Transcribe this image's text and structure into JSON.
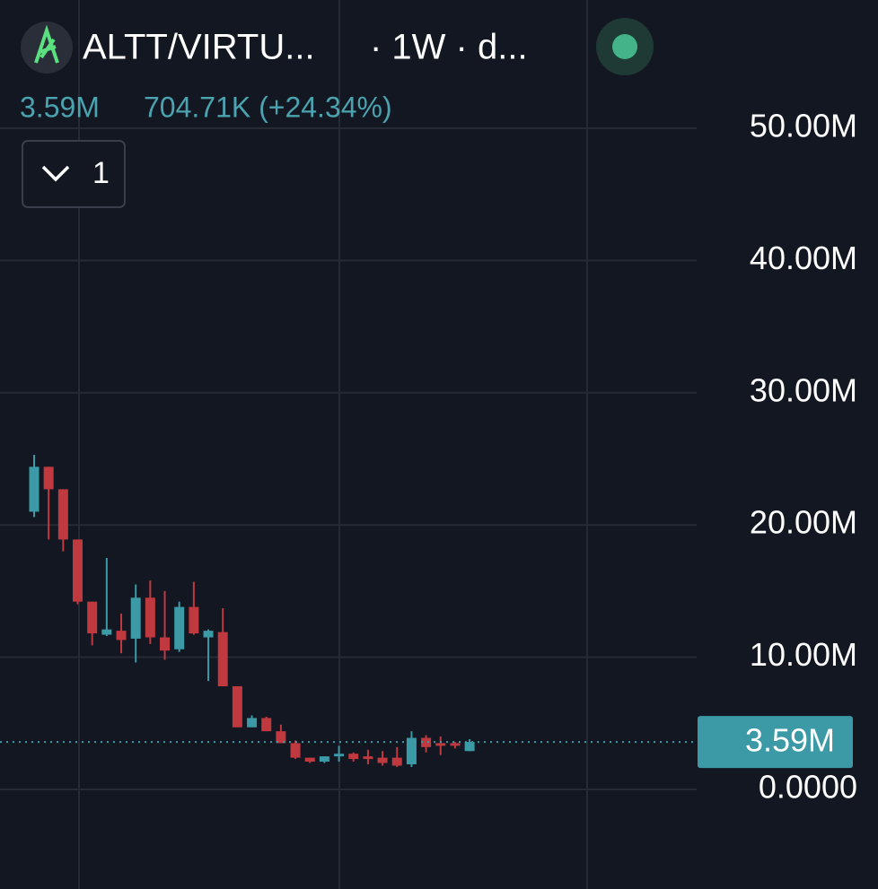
{
  "chart_data": {
    "type": "candlestick",
    "title": "ALTT/VIRTU...",
    "interval": "· 1W · d...",
    "last_label": "3.59M",
    "change_label": "704.71K (+24.34%)",
    "indicators_label": "1",
    "last_price": 3590000,
    "last_price_label": "3.59M",
    "up_color": "#3b9aa6",
    "down_color": "#c0393f",
    "categories": [
      null,
      null,
      null,
      null,
      null,
      null,
      null,
      null,
      null,
      null,
      null,
      null,
      null,
      null,
      null,
      null,
      null,
      null,
      null,
      null,
      null,
      null,
      null,
      null,
      null,
      null,
      null,
      null,
      null,
      null,
      null
    ],
    "open": [
      21000000,
      24400000,
      22700000,
      18900000,
      14200000,
      11700000,
      12000000,
      11400000,
      14500000,
      11500000,
      10600000,
      13800000,
      11500000,
      11900000,
      7800000,
      4700000,
      5400000,
      4400000,
      3500000,
      2400000,
      2100000,
      2500000,
      2700000,
      2500000,
      2400000,
      2400000,
      1900000,
      3900000,
      3500000,
      3500000,
      2900000
    ],
    "high": [
      25300000,
      24400000,
      22700000,
      18900000,
      14200000,
      17500000,
      13300000,
      15500000,
      15800000,
      15000000,
      14200000,
      15700000,
      12100000,
      13700000,
      7800000,
      5600000,
      5500000,
      4900000,
      3700000,
      2400000,
      2500000,
      3300000,
      2800000,
      3000000,
      2900000,
      3200000,
      4400000,
      4100000,
      4000000,
      3600000,
      3800000
    ],
    "low": [
      20600000,
      18900000,
      18000000,
      14000000,
      10900000,
      11600000,
      10300000,
      9600000,
      11000000,
      9800000,
      10400000,
      11700000,
      8200000,
      7800000,
      4700000,
      4700000,
      4400000,
      3500000,
      2300000,
      2000000,
      2000000,
      2100000,
      2100000,
      1900000,
      1800000,
      1700000,
      1700000,
      2800000,
      2600000,
      3100000,
      2900000
    ],
    "close": [
      24400000,
      22700000,
      18900000,
      14200000,
      11800000,
      12100000,
      11300000,
      14500000,
      11500000,
      10500000,
      13800000,
      11800000,
      12000000,
      7800000,
      4700000,
      5400000,
      4400000,
      3500000,
      2400000,
      2100000,
      2500000,
      2700000,
      2300000,
      2300000,
      2000000,
      1800000,
      3900000,
      3200000,
      3300000,
      3300000,
      3590000
    ],
    "ylim": [
      -7530000,
      59700000
    ],
    "yticks": [
      {
        "value": 0,
        "label": "0.0000"
      },
      {
        "value": 10000000,
        "label": "10.00M"
      },
      {
        "value": 20000000,
        "label": "20.00M"
      },
      {
        "value": 30000000,
        "label": "30.00M"
      },
      {
        "value": 40000000,
        "label": "40.00M"
      },
      {
        "value": 50000000,
        "label": "50.00M"
      }
    ],
    "grid": true
  }
}
